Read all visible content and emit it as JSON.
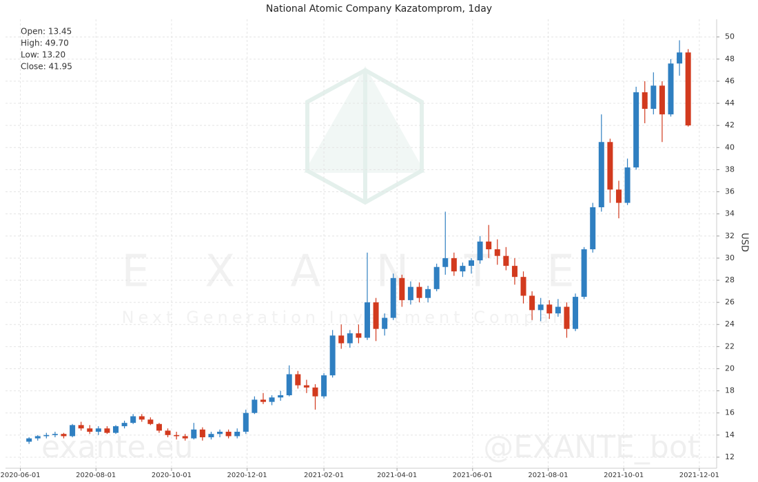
{
  "chart_data": {
    "type": "candlestick",
    "title": "National Atomic Company Kazatomprom, 1day",
    "y_label": "USD",
    "info": [
      "Open: 13.45",
      "High: 49.70",
      "Low: 13.20",
      "Close: 41.95"
    ],
    "watermarks": [
      "E X A N T E",
      "Next Generation Investment Company",
      "exante.eu",
      "@EXANTE_bot"
    ],
    "up_color": "#2f7fc1",
    "down_color": "#d23a1e",
    "grid": true,
    "xlim": [
      "2020-05-20",
      "2021-12-15"
    ],
    "xticks": [
      "2020-06-01",
      "2020-08-01",
      "2020-10-01",
      "2020-12-01",
      "2021-02-01",
      "2021-04-01",
      "2021-06-01",
      "2021-08-01",
      "2021-10-01",
      "2021-12-01"
    ],
    "ylim": [
      11,
      51.6
    ],
    "yticks": [
      12,
      14,
      16,
      18,
      20,
      22,
      24,
      26,
      28,
      30,
      32,
      34,
      36,
      38,
      40,
      42,
      44,
      46,
      48,
      50
    ],
    "x": [
      "2020-06-08",
      "2020-06-15",
      "2020-06-22",
      "2020-06-29",
      "2020-07-06",
      "2020-07-13",
      "2020-07-20",
      "2020-07-27",
      "2020-08-03",
      "2020-08-10",
      "2020-08-17",
      "2020-08-24",
      "2020-08-31",
      "2020-09-07",
      "2020-09-14",
      "2020-09-21",
      "2020-09-28",
      "2020-10-05",
      "2020-10-12",
      "2020-10-19",
      "2020-10-26",
      "2020-11-02",
      "2020-11-09",
      "2020-11-16",
      "2020-11-23",
      "2020-11-30",
      "2020-12-07",
      "2020-12-14",
      "2020-12-21",
      "2020-12-28",
      "2021-01-04",
      "2021-01-11",
      "2021-01-18",
      "2021-01-25",
      "2021-02-01",
      "2021-02-08",
      "2021-02-15",
      "2021-02-22",
      "2021-03-01",
      "2021-03-08",
      "2021-03-15",
      "2021-03-22",
      "2021-03-29",
      "2021-04-05",
      "2021-04-12",
      "2021-04-19",
      "2021-04-26",
      "2021-05-03",
      "2021-05-10",
      "2021-05-17",
      "2021-05-24",
      "2021-05-31",
      "2021-06-07",
      "2021-06-14",
      "2021-06-21",
      "2021-06-28",
      "2021-07-05",
      "2021-07-12",
      "2021-07-19",
      "2021-07-26",
      "2021-08-02",
      "2021-08-09",
      "2021-08-16",
      "2021-08-23",
      "2021-08-30",
      "2021-09-06",
      "2021-09-13",
      "2021-09-20",
      "2021-09-27",
      "2021-10-04",
      "2021-10-11",
      "2021-10-18",
      "2021-10-25",
      "2021-11-01",
      "2021-11-08",
      "2021-11-15",
      "2021-11-22"
    ],
    "open": [
      13.4,
      13.7,
      13.9,
      14.0,
      14.1,
      13.9,
      14.9,
      14.6,
      14.3,
      14.6,
      14.2,
      14.8,
      15.1,
      15.7,
      15.4,
      15.0,
      14.4,
      14.0,
      13.9,
      13.7,
      14.5,
      13.8,
      14.1,
      14.3,
      13.9,
      14.3,
      16.0,
      17.2,
      17.0,
      17.4,
      17.6,
      19.5,
      18.5,
      18.3,
      17.5,
      19.4,
      23.0,
      22.3,
      23.2,
      22.8,
      26.0,
      23.6,
      24.6,
      28.2,
      26.2,
      27.4,
      26.4,
      27.2,
      29.2,
      30.0,
      28.8,
      29.3,
      29.8,
      31.5,
      30.8,
      30.2,
      29.3,
      28.3,
      26.6,
      25.3,
      25.8,
      25.0,
      25.6,
      23.6,
      26.5,
      30.8,
      34.6,
      40.5,
      36.2,
      35.0,
      38.2,
      45.0,
      43.5,
      45.6,
      43.0,
      47.6,
      48.6
    ],
    "high": [
      13.8,
      14.0,
      14.2,
      14.3,
      14.2,
      15.0,
      15.2,
      14.9,
      14.8,
      14.8,
      14.9,
      15.3,
      15.9,
      15.9,
      15.6,
      15.1,
      14.6,
      14.3,
      14.1,
      15.1,
      14.7,
      14.3,
      14.5,
      14.5,
      14.6,
      16.3,
      17.5,
      17.8,
      17.6,
      18.0,
      20.3,
      19.8,
      19.0,
      18.6,
      19.6,
      23.5,
      24.0,
      23.5,
      24.0,
      30.5,
      26.4,
      25.0,
      28.6,
      28.5,
      27.9,
      27.8,
      27.5,
      29.5,
      34.2,
      30.5,
      29.6,
      30.0,
      32.0,
      33.0,
      31.7,
      31.0,
      30.0,
      28.8,
      27.0,
      26.4,
      26.2,
      26.3,
      26.0,
      26.8,
      31.0,
      35.0,
      43.0,
      40.8,
      37.0,
      39.0,
      45.5,
      46.0,
      46.8,
      46.0,
      48.0,
      49.7,
      48.9
    ],
    "low": [
      13.2,
      13.5,
      13.7,
      13.8,
      13.7,
      13.8,
      14.4,
      14.1,
      14.0,
      14.1,
      14.1,
      14.6,
      15.0,
      15.2,
      14.9,
      14.2,
      13.8,
      13.6,
      13.5,
      13.6,
      13.5,
      13.6,
      13.8,
      13.7,
      13.7,
      14.1,
      15.9,
      16.8,
      16.7,
      17.1,
      17.5,
      18.2,
      17.8,
      16.3,
      17.3,
      19.2,
      21.8,
      21.9,
      22.3,
      22.6,
      22.5,
      23.0,
      24.4,
      25.6,
      25.8,
      26.0,
      26.0,
      27.0,
      28.5,
      28.4,
      28.3,
      28.6,
      29.5,
      30.0,
      29.4,
      28.9,
      27.6,
      25.9,
      24.4,
      24.3,
      24.5,
      24.7,
      22.8,
      23.4,
      26.3,
      30.5,
      34.2,
      35.0,
      33.6,
      34.8,
      38.0,
      42.2,
      43.0,
      40.5,
      42.8,
      46.5,
      41.9
    ],
    "close": [
      13.7,
      13.9,
      14.0,
      14.1,
      13.9,
      14.9,
      14.6,
      14.3,
      14.6,
      14.2,
      14.8,
      15.1,
      15.7,
      15.4,
      15.0,
      14.4,
      14.0,
      13.9,
      13.7,
      14.5,
      13.8,
      14.1,
      14.3,
      13.9,
      14.3,
      16.0,
      17.2,
      17.0,
      17.4,
      17.6,
      19.5,
      18.5,
      18.3,
      17.5,
      19.4,
      23.0,
      22.3,
      23.2,
      22.8,
      26.0,
      23.6,
      24.6,
      28.2,
      26.2,
      27.4,
      26.4,
      27.2,
      29.2,
      30.0,
      28.8,
      29.3,
      29.8,
      31.5,
      30.8,
      30.2,
      29.3,
      28.3,
      26.6,
      25.3,
      25.8,
      25.0,
      25.6,
      23.6,
      26.5,
      30.8,
      34.6,
      40.5,
      36.2,
      35.0,
      38.2,
      45.0,
      43.5,
      45.6,
      43.0,
      47.6,
      48.6,
      42.0
    ]
  }
}
